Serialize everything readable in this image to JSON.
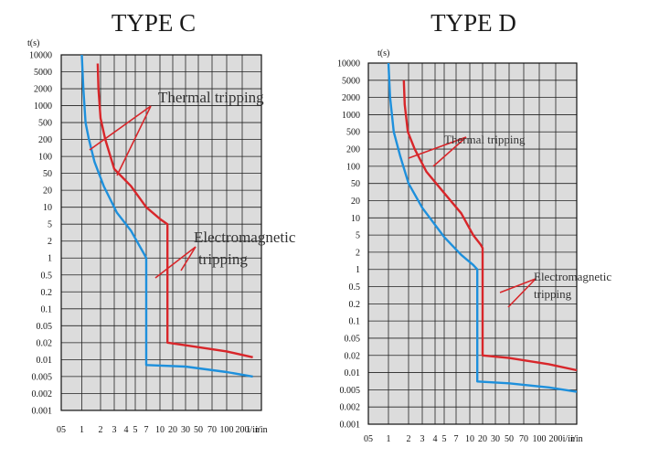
{
  "chart_data": [
    {
      "type": "line",
      "title": "TYPE C",
      "ylabel": "t(s)",
      "xlabel": "i/in",
      "y_ticks": [
        "10000",
        "5000",
        "2000",
        "1000",
        "500",
        "200",
        "100",
        "50",
        "20",
        "10",
        "5",
        "2",
        "1",
        "0.5",
        "0.2",
        "0.1",
        "0.05",
        "0.02",
        "0.01",
        "0.005",
        "0.002",
        "0.001"
      ],
      "x_ticks": [
        "05",
        "1",
        "2",
        "3",
        "4",
        "5",
        "7",
        "10",
        "20",
        "30",
        "50",
        "70",
        "100",
        "200",
        "i/in"
      ],
      "grid": true,
      "annotations": [
        "Thermal tripping",
        "Electromagnetic",
        "tripping"
      ],
      "colors": {
        "lower_curve": "#1e90dc",
        "upper_curve": "#d8262a",
        "background": "#dcdcdc"
      },
      "series": [
        {
          "color": "#1e90dc",
          "x": [
            1.0,
            1.06,
            1.15,
            1.3,
            1.6,
            2.2,
            3.2,
            4.5,
            6.5,
            7.0,
            7.0,
            7.0,
            30,
            100,
            250
          ],
          "y": [
            10000,
            2000,
            500,
            200,
            80,
            25,
            8,
            3.5,
            1.2,
            1.0,
            0.3,
            0.008,
            0.0075,
            0.006,
            0.005
          ]
        },
        {
          "color": "#d8262a",
          "x": [
            1.8,
            1.85,
            2.0,
            2.3,
            3.0,
            4.5,
            7.0,
            10.5,
            15,
            15,
            15,
            30,
            100,
            250
          ],
          "y": [
            7000,
            2000,
            600,
            200,
            60,
            25,
            10,
            6,
            5,
            0.2,
            0.02,
            0.018,
            0.014,
            0.011
          ]
        }
      ]
    },
    {
      "type": "line",
      "title": "TYPE D",
      "ylabel": "t(s)",
      "xlabel": "i/in",
      "y_ticks": [
        "10000",
        "5000",
        "2000",
        "1000",
        "500",
        "200",
        "100",
        "50",
        "20",
        "10",
        "5",
        "2",
        "1",
        "0.5",
        "0.2",
        "0.1",
        "0.05",
        "0.02",
        "0.01",
        "0.005",
        "0.002",
        "0.001"
      ],
      "x_ticks": [
        "05",
        "1",
        "2",
        "3",
        "4",
        "5",
        "7",
        "10",
        "20",
        "30",
        "50",
        "70",
        "100",
        "200",
        "i/in"
      ],
      "grid": true,
      "annotations": [
        "Thermal tripping",
        "Electromagnetic",
        "tripping"
      ],
      "colors": {
        "lower_curve": "#1e90dc",
        "upper_curve": "#d8262a",
        "background": "#dcdcdc"
      },
      "series": [
        {
          "color": "#1e90dc",
          "x": [
            1.0,
            1.06,
            1.2,
            1.5,
            2.0,
            3.0,
            5.0,
            8.0,
            12,
            15,
            15,
            15,
            50,
            150,
            300
          ],
          "y": [
            10000,
            2000,
            500,
            150,
            50,
            15,
            4.5,
            1.8,
            1.2,
            1.0,
            0.3,
            0.007,
            0.0065,
            0.0055,
            0.0045
          ]
        },
        {
          "color": "#d8262a",
          "x": [
            1.7,
            1.75,
            1.95,
            2.4,
            3.3,
            5.0,
            8.0,
            12,
            18,
            20,
            20,
            20,
            50,
            150,
            300
          ],
          "y": [
            5000,
            1500,
            500,
            200,
            80,
            30,
            12,
            5,
            3,
            2.5,
            0.3,
            0.02,
            0.018,
            0.014,
            0.011
          ]
        }
      ]
    }
  ]
}
